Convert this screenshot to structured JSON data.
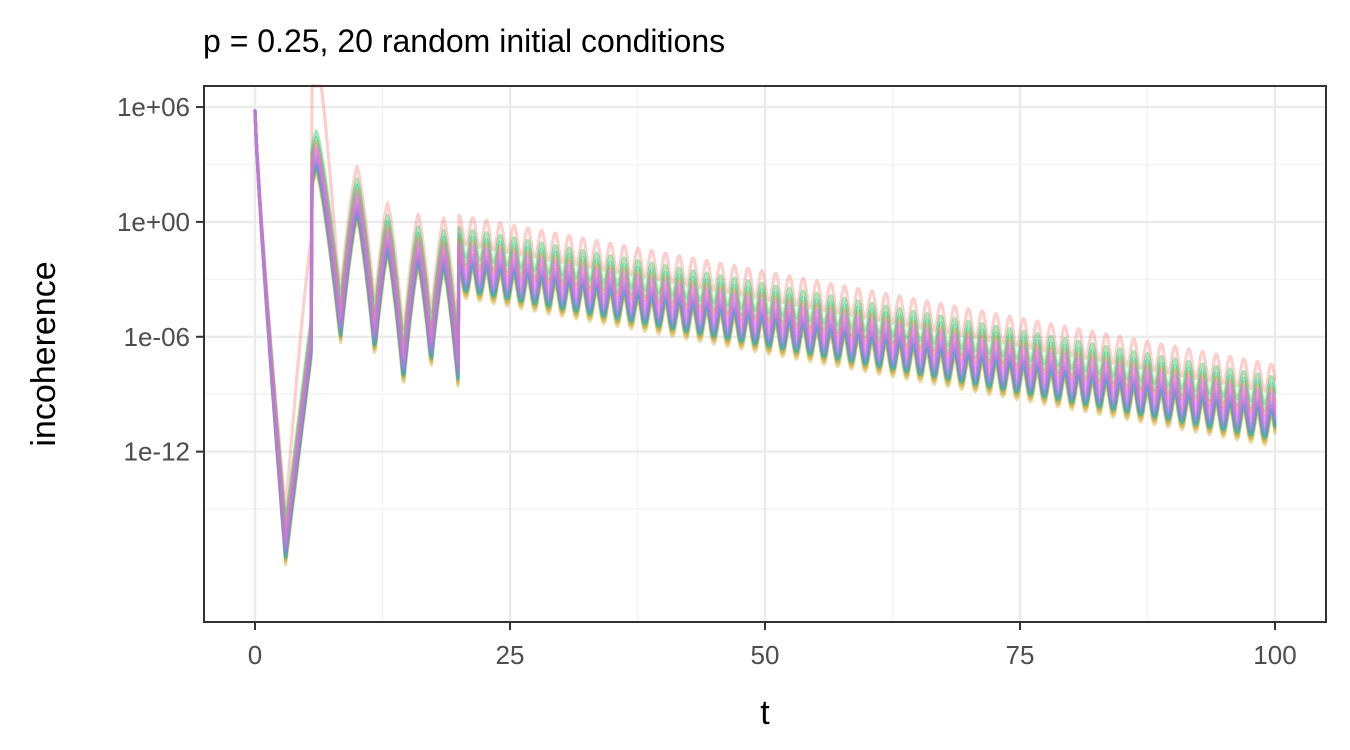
{
  "chart_data": {
    "type": "line",
    "title": "p = 0.25, 20 random initial conditions",
    "xlabel": "t",
    "ylabel": "incoherence",
    "xlim": [
      -5,
      105
    ],
    "ylog10lim": [
      -20.9,
      7.1
    ],
    "x_ticks": [
      {
        "value": 0,
        "label": "0"
      },
      {
        "value": 25,
        "label": "25"
      },
      {
        "value": 50,
        "label": "50"
      },
      {
        "value": 75,
        "label": "75"
      },
      {
        "value": 100,
        "label": "100"
      }
    ],
    "y_ticks": [
      {
        "value": 1000000.0,
        "label": "1e+06"
      },
      {
        "value": 1,
        "label": "1e+00"
      },
      {
        "value": 1e-06,
        "label": "1e-06"
      },
      {
        "value": 1e-12,
        "label": "1e-12"
      }
    ],
    "y_scale": "log10",
    "grid": true,
    "legend": "none",
    "series_count": 20,
    "series_opacity": 0.35,
    "series_colors": [
      "#F8766D",
      "#E58700",
      "#C99800",
      "#A3A500",
      "#6BB100",
      "#00BA38",
      "#00BF7D",
      "#00C0AF",
      "#00BCD8",
      "#00B0F6",
      "#619CFF",
      "#B983FF",
      "#E76BF3",
      "#FD61D1",
      "#FF67A4",
      "#E7861B",
      "#00A9FF",
      "#8494FF",
      "#CF78FF",
      "#FF61C3"
    ],
    "series_offsets_log10": [
      2.2,
      -0.45,
      -0.6,
      -0.35,
      -0.2,
      1.55,
      1.2,
      -0.05,
      0.05,
      -0.15,
      0.15,
      0.6,
      0.85,
      0.3,
      0.45,
      1.0,
      -0.25,
      0.25,
      0.7,
      0.0
    ],
    "t_start": 0,
    "t_end": 100,
    "t_step": 0.1,
    "log10_shape": {
      "comment": "log10(incoherence) as function of t",
      "start_value": 5.8,
      "initial_drop_to": -17.3,
      "drop_end_t": 3,
      "envelope_after_t20": {
        "at_20": -2.6,
        "at_100": -10.4
      },
      "oscillation_period": 1.35,
      "oscillation_amplitude": 0.75
    }
  }
}
